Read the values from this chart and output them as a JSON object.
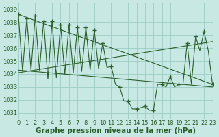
{
  "bg_color": "#c8e8e4",
  "grid_color": "#9eccc6",
  "line_color": "#2a5e2a",
  "xlim": [
    0,
    23
  ],
  "ylim": [
    1030.5,
    1039.5
  ],
  "yticks": [
    1031,
    1032,
    1033,
    1034,
    1035,
    1036,
    1037,
    1038,
    1039
  ],
  "xticks": [
    0,
    1,
    2,
    3,
    4,
    5,
    6,
    7,
    8,
    9,
    10,
    11,
    12,
    13,
    14,
    15,
    16,
    17,
    18,
    19,
    20,
    21,
    22,
    23
  ],
  "hours": [
    0,
    0.5,
    1,
    1.5,
    2,
    2.5,
    3,
    3.5,
    4,
    4.5,
    5,
    5.5,
    6,
    6.5,
    7,
    7.5,
    8,
    8.5,
    9,
    9.5,
    10,
    10.5,
    11,
    11.5,
    12,
    12.5,
    13,
    13.5,
    14,
    14.5,
    15,
    15.5,
    16,
    16.5,
    17,
    17.5,
    18,
    18.5,
    19,
    19.5,
    20,
    20.5,
    21,
    21.5,
    22,
    22.5,
    23
  ],
  "pressure": [
    1038.6,
    1034.2,
    1038.3,
    1034.3,
    1038.5,
    1034.3,
    1038.1,
    1033.6,
    1038.1,
    1033.7,
    1037.8,
    1034.0,
    1037.8,
    1034.1,
    1037.6,
    1034.2,
    1037.6,
    1034.3,
    1037.4,
    1034.4,
    1036.4,
    1034.5,
    1034.6,
    1033.2,
    1033.0,
    1031.9,
    1031.9,
    1031.3,
    1031.3,
    1031.4,
    1031.5,
    1031.2,
    1031.2,
    1033.2,
    1033.2,
    1033.0,
    1033.8,
    1033.0,
    1033.2,
    1033.2,
    1036.4,
    1033.2,
    1036.9,
    1035.8,
    1037.3,
    1035.8,
    1033.2
  ],
  "peak_hours": [
    0,
    1,
    2,
    3,
    4,
    5,
    6,
    7,
    8,
    9,
    10,
    11,
    12,
    13,
    14,
    15,
    16,
    17,
    18,
    19,
    20,
    21,
    22,
    23
  ],
  "peak_vals": [
    1038.6,
    1038.3,
    1038.5,
    1038.1,
    1038.1,
    1037.8,
    1037.8,
    1037.6,
    1037.6,
    1037.4,
    1036.4,
    1034.6,
    1033.0,
    1031.9,
    1031.3,
    1031.5,
    1031.2,
    1033.2,
    1033.8,
    1033.2,
    1036.4,
    1036.9,
    1037.3,
    1033.2
  ],
  "trend1_x": [
    0,
    23
  ],
  "trend1_y": [
    1038.6,
    1033.2
  ],
  "trend2_x": [
    0,
    23
  ],
  "trend2_y": [
    1034.1,
    1036.5
  ],
  "trend3_x": [
    0,
    23
  ],
  "trend3_y": [
    1034.3,
    1033.0
  ],
  "xlabel": "Graphe pression niveau de la mer (hPa)",
  "xlabel_fontsize": 7.5,
  "tick_fontsize": 6.0
}
